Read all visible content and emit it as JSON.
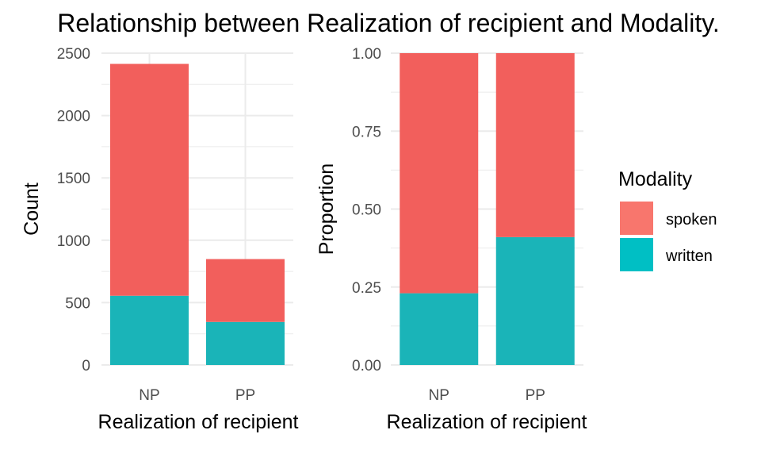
{
  "title": "Relationship between Realization of recipient and Modality.",
  "legend": {
    "title": "Modality",
    "items": [
      {
        "label": "spoken",
        "color": "#F8766D"
      },
      {
        "label": "written",
        "color": "#00BFC4"
      }
    ]
  },
  "chart_data": [
    {
      "type": "bar",
      "stacked": true,
      "categories": [
        "NP",
        "PP"
      ],
      "series": [
        {
          "name": "written",
          "values": [
            555,
            345
          ],
          "color": "#1AB4B8"
        },
        {
          "name": "spoken",
          "values": [
            1859,
            504
          ],
          "color": "#F25F5C"
        }
      ],
      "xlabel": "Realization of recipient",
      "ylabel": "Count",
      "ylim": [
        0,
        2500
      ],
      "yticks": [
        0,
        500,
        1000,
        1500,
        2000,
        2500
      ],
      "ytick_labels": [
        "0",
        "500",
        "1000",
        "1500",
        "2000",
        "2500"
      ],
      "grid": true
    },
    {
      "type": "bar",
      "stacked": true,
      "categories": [
        "NP",
        "PP"
      ],
      "series": [
        {
          "name": "written",
          "values": [
            0.23,
            0.41
          ],
          "color": "#1AB4B8"
        },
        {
          "name": "spoken",
          "values": [
            0.77,
            0.59
          ],
          "color": "#F25F5C"
        }
      ],
      "xlabel": "Realization of recipient",
      "ylabel": "Proportion",
      "ylim": [
        0,
        1
      ],
      "yticks": [
        0,
        0.25,
        0.5,
        0.75,
        1.0
      ],
      "ytick_labels": [
        "0.00",
        "0.25",
        "0.50",
        "0.75",
        "1.00"
      ],
      "grid": true
    }
  ]
}
